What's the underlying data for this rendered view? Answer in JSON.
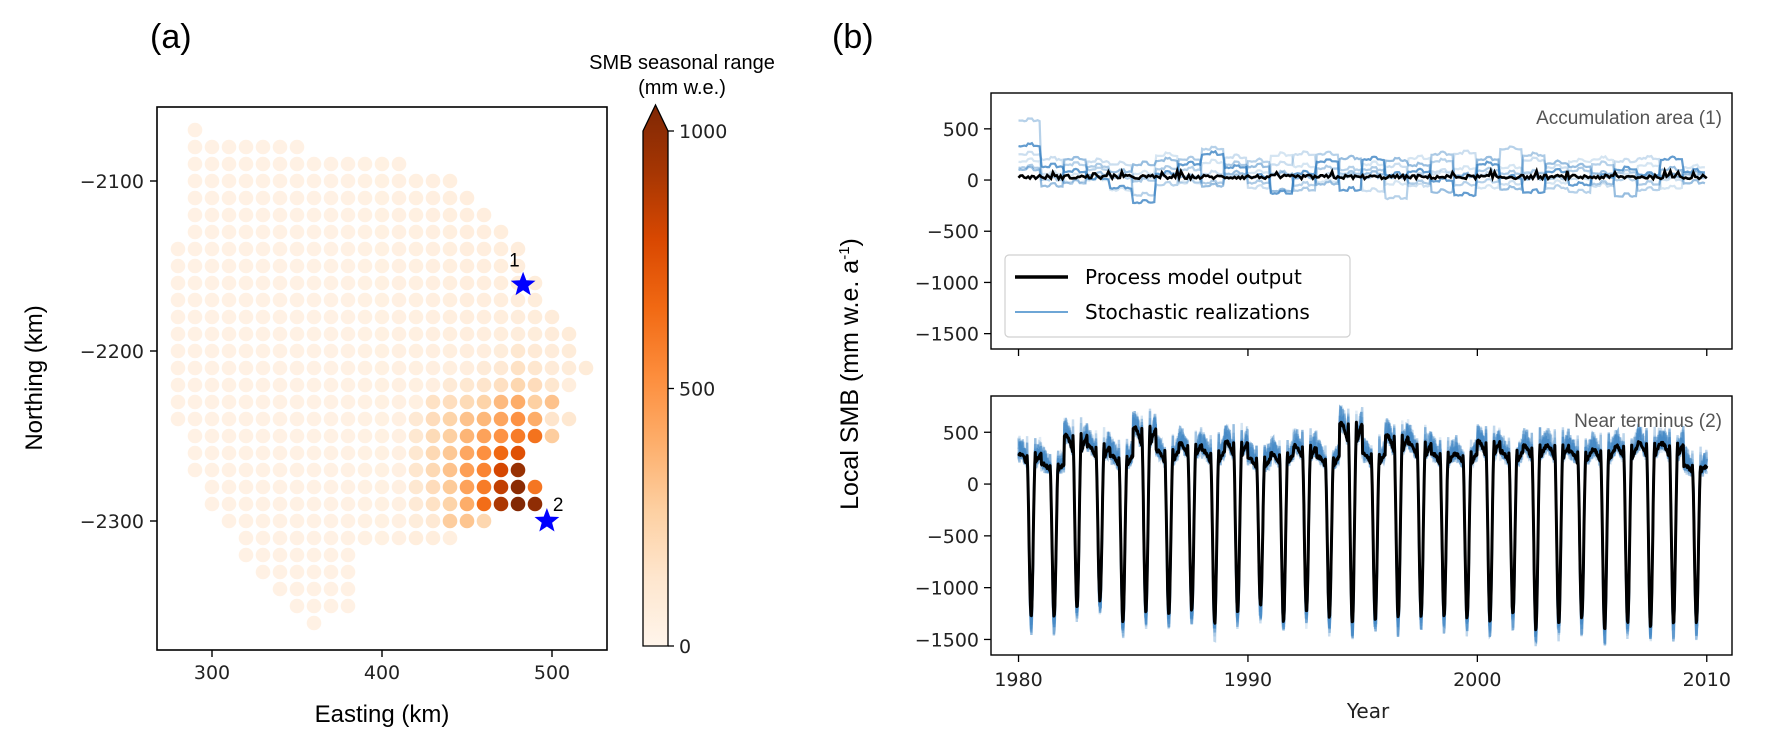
{
  "figure": {
    "panel_a_label": "(a)",
    "panel_b_label": "(b)"
  },
  "chart_data": [
    {
      "type": "scatter",
      "id": "map",
      "title": "",
      "xlabel": "Easting (km)",
      "ylabel": "Northing (km)",
      "xlim": [
        268,
        532
      ],
      "ylim": [
        -2380,
        -2060
      ],
      "xticks": [
        300,
        400,
        500
      ],
      "yticks": [
        -2100,
        -2200,
        -2300
      ],
      "xtick_labels": [
        "300",
        "400",
        "500"
      ],
      "ytick_labels": [
        "−2100",
        "−2200",
        "−2300"
      ],
      "grid": false,
      "grid_spacing_km": 10,
      "rows": [
        {
          "northing": -2070,
          "easting_min": 290,
          "easting_max": 290
        },
        {
          "northing": -2080,
          "easting_min": 290,
          "easting_max": 350
        },
        {
          "northing": -2090,
          "easting_min": 290,
          "easting_max": 410
        },
        {
          "northing": -2100,
          "easting_min": 290,
          "easting_max": 440
        },
        {
          "northing": -2110,
          "easting_min": 290,
          "easting_max": 450
        },
        {
          "northing": -2120,
          "easting_min": 290,
          "easting_max": 460
        },
        {
          "northing": -2130,
          "easting_min": 290,
          "easting_max": 470
        },
        {
          "northing": -2140,
          "easting_min": 280,
          "easting_max": 480
        },
        {
          "northing": -2150,
          "easting_min": 280,
          "easting_max": 480
        },
        {
          "northing": -2160,
          "easting_min": 280,
          "easting_max": 490
        },
        {
          "northing": -2170,
          "easting_min": 280,
          "easting_max": 490
        },
        {
          "northing": -2180,
          "easting_min": 280,
          "easting_max": 500
        },
        {
          "northing": -2190,
          "easting_min": 280,
          "easting_max": 510
        },
        {
          "northing": -2200,
          "easting_min": 280,
          "easting_max": 510
        },
        {
          "northing": -2210,
          "easting_min": 280,
          "easting_max": 520
        },
        {
          "northing": -2220,
          "easting_min": 280,
          "easting_max": 510
        },
        {
          "northing": -2230,
          "easting_min": 280,
          "easting_max": 500
        },
        {
          "northing": -2240,
          "easting_min": 280,
          "easting_max": 510
        },
        {
          "northing": -2250,
          "easting_min": 290,
          "easting_max": 500
        },
        {
          "northing": -2260,
          "easting_min": 290,
          "easting_max": 480
        },
        {
          "northing": -2270,
          "easting_min": 290,
          "easting_max": 480
        },
        {
          "northing": -2280,
          "easting_min": 300,
          "easting_max": 490
        },
        {
          "northing": -2290,
          "easting_min": 300,
          "easting_max": 490
        },
        {
          "northing": -2300,
          "easting_min": 310,
          "easting_max": 460
        },
        {
          "northing": -2310,
          "easting_min": 320,
          "easting_max": 440
        },
        {
          "northing": -2320,
          "easting_min": 320,
          "easting_max": 380
        },
        {
          "northing": -2330,
          "easting_min": 330,
          "easting_max": 380
        },
        {
          "northing": -2340,
          "easting_min": 340,
          "easting_max": 380
        },
        {
          "northing": -2350,
          "easting_min": 350,
          "easting_max": 380
        },
        {
          "northing": -2360,
          "easting_min": 360,
          "easting_max": 360
        }
      ],
      "background_value": 30,
      "values": [
        {
          "e": 470,
          "n": -2200,
          "v": 70
        },
        {
          "e": 480,
          "n": -2200,
          "v": 110
        },
        {
          "e": 490,
          "n": -2200,
          "v": 90
        },
        {
          "e": 460,
          "n": -2210,
          "v": 80
        },
        {
          "e": 470,
          "n": -2210,
          "v": 100
        },
        {
          "e": 480,
          "n": -2210,
          "v": 150
        },
        {
          "e": 490,
          "n": -2210,
          "v": 120
        },
        {
          "e": 500,
          "n": -2210,
          "v": 80
        },
        {
          "e": 440,
          "n": -2220,
          "v": 90
        },
        {
          "e": 450,
          "n": -2220,
          "v": 110
        },
        {
          "e": 460,
          "n": -2220,
          "v": 130
        },
        {
          "e": 470,
          "n": -2220,
          "v": 160
        },
        {
          "e": 480,
          "n": -2220,
          "v": 210
        },
        {
          "e": 490,
          "n": -2220,
          "v": 180
        },
        {
          "e": 500,
          "n": -2220,
          "v": 120
        },
        {
          "e": 510,
          "n": -2220,
          "v": 60
        },
        {
          "e": 430,
          "n": -2230,
          "v": 150
        },
        {
          "e": 440,
          "n": -2230,
          "v": 170
        },
        {
          "e": 450,
          "n": -2230,
          "v": 190
        },
        {
          "e": 460,
          "n": -2230,
          "v": 230
        },
        {
          "e": 470,
          "n": -2230,
          "v": 330
        },
        {
          "e": 480,
          "n": -2230,
          "v": 380
        },
        {
          "e": 490,
          "n": -2230,
          "v": 250
        },
        {
          "e": 500,
          "n": -2230,
          "v": 300
        },
        {
          "e": 420,
          "n": -2240,
          "v": 100
        },
        {
          "e": 430,
          "n": -2240,
          "v": 180
        },
        {
          "e": 440,
          "n": -2240,
          "v": 230
        },
        {
          "e": 450,
          "n": -2240,
          "v": 300
        },
        {
          "e": 460,
          "n": -2240,
          "v": 340
        },
        {
          "e": 470,
          "n": -2240,
          "v": 410
        },
        {
          "e": 480,
          "n": -2240,
          "v": 480
        },
        {
          "e": 490,
          "n": -2240,
          "v": 380
        },
        {
          "e": 500,
          "n": -2240,
          "v": 130
        },
        {
          "e": 510,
          "n": -2240,
          "v": 110
        },
        {
          "e": 420,
          "n": -2250,
          "v": 110
        },
        {
          "e": 430,
          "n": -2250,
          "v": 190
        },
        {
          "e": 440,
          "n": -2250,
          "v": 250
        },
        {
          "e": 450,
          "n": -2250,
          "v": 350
        },
        {
          "e": 460,
          "n": -2250,
          "v": 420
        },
        {
          "e": 470,
          "n": -2250,
          "v": 480
        },
        {
          "e": 480,
          "n": -2250,
          "v": 560
        },
        {
          "e": 490,
          "n": -2250,
          "v": 590
        },
        {
          "e": 500,
          "n": -2250,
          "v": 260
        },
        {
          "e": 420,
          "n": -2260,
          "v": 110
        },
        {
          "e": 430,
          "n": -2260,
          "v": 200
        },
        {
          "e": 440,
          "n": -2260,
          "v": 280
        },
        {
          "e": 450,
          "n": -2260,
          "v": 400
        },
        {
          "e": 460,
          "n": -2260,
          "v": 490
        },
        {
          "e": 470,
          "n": -2260,
          "v": 630
        },
        {
          "e": 480,
          "n": -2260,
          "v": 720
        },
        {
          "e": 420,
          "n": -2270,
          "v": 120
        },
        {
          "e": 430,
          "n": -2270,
          "v": 200
        },
        {
          "e": 440,
          "n": -2270,
          "v": 300
        },
        {
          "e": 450,
          "n": -2270,
          "v": 430
        },
        {
          "e": 460,
          "n": -2270,
          "v": 530
        },
        {
          "e": 470,
          "n": -2270,
          "v": 760
        },
        {
          "e": 480,
          "n": -2270,
          "v": 920
        },
        {
          "e": 420,
          "n": -2280,
          "v": 110
        },
        {
          "e": 430,
          "n": -2280,
          "v": 180
        },
        {
          "e": 440,
          "n": -2280,
          "v": 270
        },
        {
          "e": 450,
          "n": -2280,
          "v": 420
        },
        {
          "e": 460,
          "n": -2280,
          "v": 560
        },
        {
          "e": 470,
          "n": -2280,
          "v": 810
        },
        {
          "e": 480,
          "n": -2280,
          "v": 960
        },
        {
          "e": 490,
          "n": -2280,
          "v": 580
        },
        {
          "e": 420,
          "n": -2290,
          "v": 90
        },
        {
          "e": 430,
          "n": -2290,
          "v": 150
        },
        {
          "e": 440,
          "n": -2290,
          "v": 230
        },
        {
          "e": 450,
          "n": -2290,
          "v": 380
        },
        {
          "e": 460,
          "n": -2290,
          "v": 610
        },
        {
          "e": 470,
          "n": -2290,
          "v": 860
        },
        {
          "e": 480,
          "n": -2290,
          "v": 990
        },
        {
          "e": 490,
          "n": -2290,
          "v": 950
        },
        {
          "e": 420,
          "n": -2300,
          "v": 70
        },
        {
          "e": 430,
          "n": -2300,
          "v": 100
        },
        {
          "e": 440,
          "n": -2300,
          "v": 260
        },
        {
          "e": 450,
          "n": -2300,
          "v": 290
        },
        {
          "e": 460,
          "n": -2300,
          "v": 210
        },
        {
          "e": 420,
          "n": -2310,
          "v": 60
        },
        {
          "e": 430,
          "n": -2310,
          "v": 60
        }
      ],
      "markers": [
        {
          "label": "1",
          "easting": 483,
          "northing": -2161,
          "color": "#0000ff"
        },
        {
          "label": "2",
          "easting": 497,
          "northing": -2300,
          "color": "#0000ff"
        }
      ],
      "colorbar": {
        "title_line1": "SMB seasonal range",
        "title_line2": "(mm w.e.)",
        "min": 0,
        "max": 1000,
        "ticks": [
          0,
          500,
          1000
        ],
        "tick_labels": [
          "0",
          "500",
          "1000"
        ],
        "extend": "max",
        "colormap": "Oranges",
        "stops": [
          "#fff5eb",
          "#fee6ce",
          "#fdd0a2",
          "#fdae6b",
          "#fd8d3c",
          "#f16913",
          "#d94801",
          "#a63603",
          "#7f2704"
        ]
      }
    },
    {
      "type": "line",
      "id": "accumulation",
      "annotation": "Accumulation area (1)",
      "xlim": [
        1978.8,
        2011.1
      ],
      "ylim": [
        -1650,
        850
      ],
      "yticks": [
        500,
        0,
        -500,
        -1000,
        -1500
      ],
      "ytick_labels": [
        "500",
        "0",
        "−500",
        "−1000",
        "−1500"
      ],
      "xticks": [
        1980,
        1990,
        2000,
        2010
      ],
      "show_xtick_labels": false,
      "x_start": 1980,
      "x_end": 2010,
      "series": [
        {
          "name": "Process model output",
          "color": "#000000",
          "kind": "process",
          "mean": 30,
          "noise": 20
        },
        {
          "name": "Stochastic realizations",
          "color": "#2f7bbf",
          "kind": "stochastic",
          "count": 6,
          "annual_offsets": [
            [
              330,
              130,
              80,
              10,
              -80,
              -220,
              60,
              150,
              250,
              120,
              30,
              -130,
              60,
              180,
              -100,
              200,
              50,
              80,
              -10,
              -150,
              150,
              20,
              -120,
              80,
              -50,
              30,
              100,
              50,
              200,
              80
            ],
            [
              580,
              30,
              150,
              100,
              20,
              -150,
              -50,
              100,
              300,
              30,
              180,
              50,
              -50,
              250,
              100,
              20,
              -180,
              40,
              180,
              -50,
              -20,
              300,
              70,
              -80,
              -120,
              150,
              0,
              -100,
              40,
              20
            ],
            [
              250,
              200,
              -20,
              180,
              150,
              20,
              40,
              -30,
              60,
              220,
              -80,
              150,
              250,
              40,
              30,
              -110,
              130,
              -60,
              80,
              260,
              50,
              -40,
              190,
              120,
              10,
              -60,
              180,
              210,
              0,
              50
            ],
            [
              100,
              -60,
              200,
              50,
              80,
              150,
              190,
              30,
              -60,
              60,
              130,
              -110,
              20,
              -40,
              210,
              60,
              190,
              140,
              -120,
              40,
              200,
              -90,
              10,
              160,
              130,
              60,
              -160,
              30,
              100,
              -30
            ],
            [
              180,
              60,
              40,
              0,
              -100,
              60,
              240,
              -20,
              170,
              20,
              70,
              240,
              130,
              -20,
              40,
              150,
              -40,
              210,
              60,
              110,
              -80,
              120,
              60,
              -30,
              180,
              200,
              40,
              140,
              -80,
              120
            ],
            [
              120,
              0,
              -30,
              130,
              40,
              -10,
              110,
              200,
              -30,
              150,
              -30,
              60,
              -100,
              110,
              60,
              100,
              20,
              -30,
              250,
              30,
              90,
              60,
              240,
              10,
              90,
              -40,
              70,
              -40,
              30,
              60
            ]
          ]
        }
      ],
      "legend": {
        "placement": "lower-left",
        "entries": [
          {
            "label": "Process model output",
            "color": "#000000"
          },
          {
            "label": "Stochastic realizations",
            "color": "#6ea6d6"
          }
        ]
      }
    },
    {
      "type": "line",
      "id": "terminus",
      "annotation": "Near terminus (2)",
      "xlabel": "Year",
      "ylabel": "Local SMB  (mm w.e. a⁻¹)",
      "xlim": [
        1978.8,
        2011.1
      ],
      "ylim": [
        -1650,
        850
      ],
      "yticks": [
        500,
        0,
        -500,
        -1000,
        -1500
      ],
      "ytick_labels": [
        "500",
        "0",
        "−500",
        "−1000",
        "−1500"
      ],
      "xticks": [
        1980,
        1990,
        2000,
        2010
      ],
      "xtick_labels": [
        "1980",
        "1990",
        "2000",
        "2010"
      ],
      "x_start": 1980,
      "x_end": 2010,
      "series": [
        {
          "name": "Process model output",
          "color": "#000000",
          "kind": "process",
          "annual_max": [
            300,
            200,
            480,
            380,
            280,
            560,
            330,
            400,
            330,
            420,
            250,
            300,
            380,
            270,
            600,
            300,
            480,
            400,
            300,
            300,
            420,
            320,
            380,
            380,
            320,
            340,
            380,
            410,
            400,
            180
          ],
          "annual_min": [
            -1290,
            -1280,
            -1200,
            -1120,
            -1330,
            -1230,
            -1260,
            -1220,
            -1350,
            -1230,
            -1180,
            -1320,
            -1230,
            -1290,
            -1350,
            -1310,
            -1290,
            -1270,
            -1270,
            -1300,
            -1320,
            -1260,
            -1400,
            -1340,
            -1300,
            -1410,
            -1340,
            -1370,
            -1340,
            -1340
          ]
        },
        {
          "name": "Stochastic realizations",
          "color": "#2f7bbf",
          "kind": "stochastic",
          "count": 6,
          "spread": 180
        }
      ]
    }
  ],
  "shared_ylabel": {
    "main": "Local SMB  (mm w.e. a",
    "sup": "-1",
    "close": ")"
  }
}
